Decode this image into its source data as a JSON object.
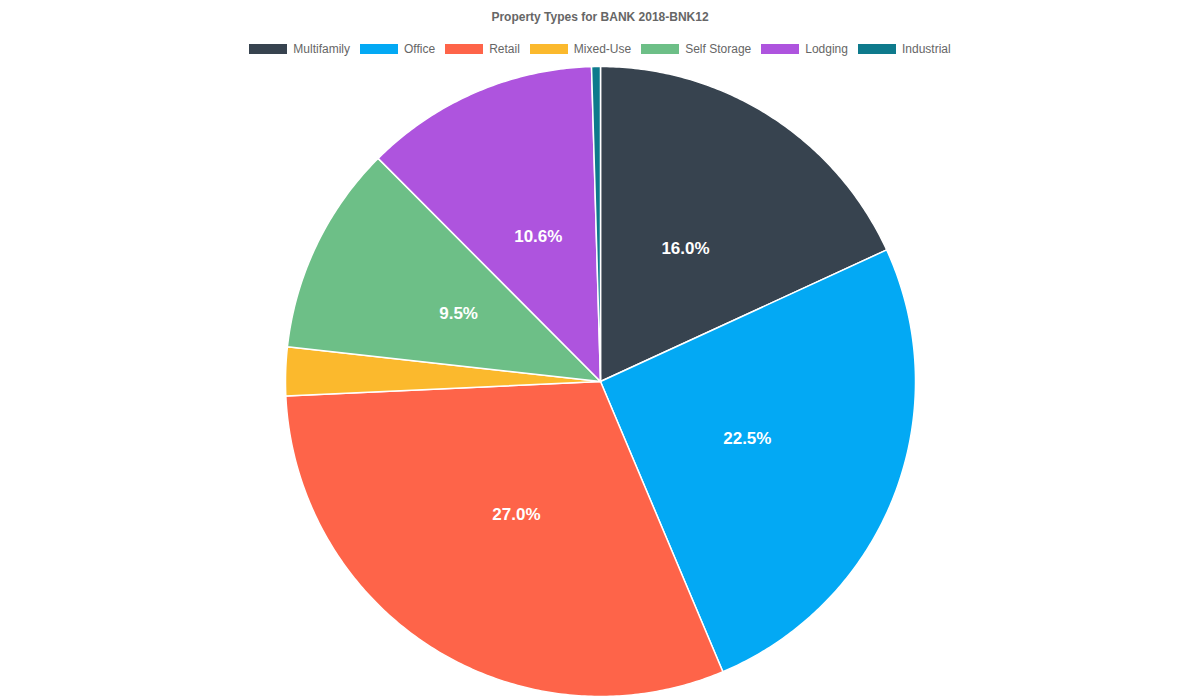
{
  "chart_data": {
    "type": "pie",
    "title": "Property Types for BANK 2018-BNK12",
    "categories": [
      "Multifamily",
      "Office",
      "Retail",
      "Mixed-Use",
      "Self Storage",
      "Lodging",
      "Industrial"
    ],
    "values": [
      16.0,
      22.5,
      27.0,
      2.2,
      9.5,
      10.6,
      0.4
    ],
    "colors": [
      "#37434f",
      "#03a9f4",
      "#fe6449",
      "#fbb92d",
      "#6dbf87",
      "#ae54de",
      "#0e7a8c"
    ],
    "data_labels": true,
    "value_labels": [
      "16.0%",
      "22.5%",
      "27.0%",
      null,
      "9.5%",
      "10.6%",
      null
    ],
    "legend": "top"
  }
}
